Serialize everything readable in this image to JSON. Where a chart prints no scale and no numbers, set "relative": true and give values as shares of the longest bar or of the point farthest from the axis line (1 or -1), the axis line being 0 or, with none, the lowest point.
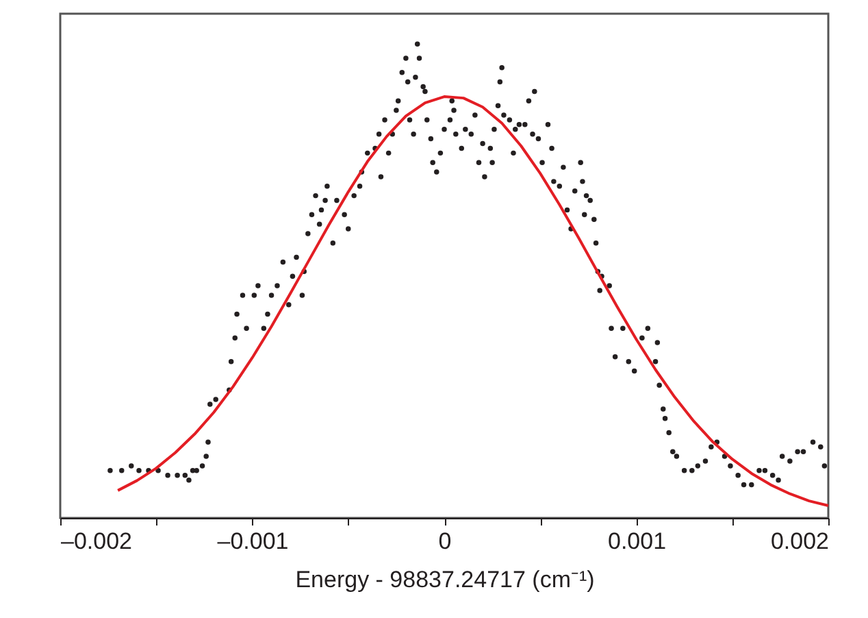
{
  "chart_data": {
    "type": "scatter",
    "relative": true,
    "xlabel": "Energy - 98837.24717 (cm⁻¹)",
    "xlim": [
      -0.002,
      0.002
    ],
    "xticks": [
      {
        "value": -0.002,
        "label": "–0.002"
      },
      {
        "value": -0.0015,
        "label": null
      },
      {
        "value": -0.001,
        "label": "–0.001"
      },
      {
        "value": -0.0005,
        "label": null
      },
      0,
      {
        "value": 0.0005,
        "label": null
      },
      0.001,
      {
        "value": 0.0015,
        "label": null
      },
      0.002
    ],
    "grid": false,
    "series": [
      {
        "type": "scatter",
        "color": "#231f20",
        "marker": "circle",
        "x": [
          -0.00174,
          -0.00168,
          -0.00163,
          -0.00159,
          -0.00154,
          -0.00149,
          -0.00144,
          -0.00139,
          -0.00135,
          -0.00133,
          -0.00131,
          -0.00129,
          -0.00126,
          -0.00124,
          -0.00123,
          -0.00122,
          -0.00119,
          -0.00112,
          -0.00111,
          -0.00109,
          -0.00108,
          -0.00105,
          -0.00103,
          -0.00099,
          -0.00097,
          -0.00094,
          -0.00092,
          -0.0009,
          -0.00087,
          -0.00084,
          -0.00081,
          -0.00079,
          -0.00077,
          -0.00074,
          -0.00073,
          -0.00071,
          -0.00069,
          -0.00067,
          -0.00065,
          -0.00064,
          -0.00062,
          -0.00061,
          -0.00058,
          -0.00056,
          -0.00052,
          -0.0005,
          -0.00047,
          -0.00044,
          -0.00043,
          -0.0004,
          -0.00036,
          -0.00034,
          -0.00033,
          -0.00031,
          -0.00029,
          -0.00027,
          -0.00025,
          -0.00024,
          -0.00022,
          -0.0002,
          -0.00019,
          -0.00018,
          -0.00016,
          -0.00015,
          -0.00014,
          -0.00013,
          -0.00011,
          -0.0001,
          -9e-05,
          -7e-05,
          -6e-05,
          -4e-05,
          -2e-05,
          0.0,
          3e-05,
          4e-05,
          5e-05,
          6e-05,
          9e-05,
          0.00011,
          0.00014,
          0.00016,
          0.00018,
          0.0002,
          0.00021,
          0.00024,
          0.00025,
          0.00026,
          0.00028,
          0.00029,
          0.0003,
          0.00031,
          0.00034,
          0.00036,
          0.00037,
          0.00039,
          0.00042,
          0.00044,
          0.00046,
          0.00047,
          0.00049,
          0.00051,
          0.00054,
          0.00056,
          0.00057,
          0.0006,
          0.00062,
          0.00064,
          0.00066,
          0.00068,
          0.00071,
          0.00072,
          0.00073,
          0.00074,
          0.00076,
          0.00078,
          0.00079,
          0.0008,
          0.00081,
          0.00082,
          0.00086,
          0.00087,
          0.00089,
          0.00093,
          0.00096,
          0.00099,
          0.00103,
          0.00106,
          0.0011,
          0.00111,
          0.00112,
          0.00114,
          0.00115,
          0.00117,
          0.00119,
          0.00121,
          0.00125,
          0.00129,
          0.00132,
          0.00136,
          0.00139,
          0.00142,
          0.00146,
          0.00149,
          0.00153,
          0.00156,
          0.0016,
          0.00164,
          0.00167,
          0.00171,
          0.00174,
          0.00176,
          0.0018,
          0.00184,
          0.00187,
          0.00192,
          0.00196,
          0.00198
        ],
        "values": [
          0.1,
          0.1,
          0.11,
          0.1,
          0.1,
          0.1,
          0.09,
          0.09,
          0.09,
          0.08,
          0.1,
          0.1,
          0.11,
          0.13,
          0.16,
          0.24,
          0.25,
          0.27,
          0.33,
          0.38,
          0.43,
          0.47,
          0.4,
          0.47,
          0.49,
          0.4,
          0.43,
          0.47,
          0.49,
          0.54,
          0.45,
          0.51,
          0.55,
          0.47,
          0.52,
          0.6,
          0.64,
          0.68,
          0.62,
          0.65,
          0.67,
          0.7,
          0.58,
          0.67,
          0.64,
          0.61,
          0.68,
          0.7,
          0.73,
          0.77,
          0.78,
          0.81,
          0.72,
          0.84,
          0.77,
          0.81,
          0.86,
          0.88,
          0.94,
          0.97,
          0.92,
          0.84,
          0.81,
          0.93,
          1.0,
          0.97,
          0.91,
          0.9,
          0.84,
          0.8,
          0.75,
          0.73,
          0.77,
          0.82,
          0.84,
          0.88,
          0.86,
          0.81,
          0.78,
          0.82,
          0.81,
          0.85,
          0.75,
          0.79,
          0.72,
          0.78,
          0.75,
          0.82,
          0.87,
          0.92,
          0.95,
          0.85,
          0.84,
          0.77,
          0.82,
          0.83,
          0.83,
          0.88,
          0.81,
          0.9,
          0.8,
          0.75,
          0.83,
          0.78,
          0.71,
          0.7,
          0.74,
          0.65,
          0.61,
          0.69,
          0.75,
          0.71,
          0.64,
          0.68,
          0.67,
          0.63,
          0.58,
          0.52,
          0.48,
          0.51,
          0.49,
          0.4,
          0.34,
          0.4,
          0.33,
          0.31,
          0.38,
          0.4,
          0.33,
          0.37,
          0.28,
          0.23,
          0.21,
          0.18,
          0.14,
          0.13,
          0.1,
          0.1,
          0.11,
          0.12,
          0.15,
          0.16,
          0.13,
          0.11,
          0.09,
          0.07,
          0.07,
          0.1,
          0.1,
          0.09,
          0.08,
          0.13,
          0.12,
          0.14,
          0.14,
          0.16,
          0.15,
          0.11
        ]
      },
      {
        "type": "line",
        "color": "#e31e24",
        "marker": "none",
        "line_style": "solid",
        "x": [
          -0.0017,
          -0.0016,
          -0.0015,
          -0.0014,
          -0.0013,
          -0.0012,
          -0.0011,
          -0.001,
          -0.0009,
          -0.0008,
          -0.0007,
          -0.0006,
          -0.0005,
          -0.0004,
          -0.0003,
          -0.0002,
          -0.0001,
          0.0,
          0.0001,
          0.0002,
          0.0003,
          0.0004,
          0.0005,
          0.0006,
          0.0007,
          0.0008,
          0.0009,
          0.001,
          0.0011,
          0.0012,
          0.0013,
          0.0014,
          0.0015,
          0.0016,
          0.0017,
          0.0018,
          0.0019,
          0.002
        ],
        "values": [
          0.058,
          0.079,
          0.105,
          0.138,
          0.177,
          0.223,
          0.277,
          0.338,
          0.404,
          0.475,
          0.547,
          0.619,
          0.688,
          0.752,
          0.805,
          0.848,
          0.876,
          0.889,
          0.886,
          0.867,
          0.833,
          0.785,
          0.727,
          0.661,
          0.591,
          0.518,
          0.446,
          0.377,
          0.313,
          0.255,
          0.204,
          0.16,
          0.124,
          0.094,
          0.07,
          0.051,
          0.036,
          0.026
        ]
      }
    ]
  }
}
